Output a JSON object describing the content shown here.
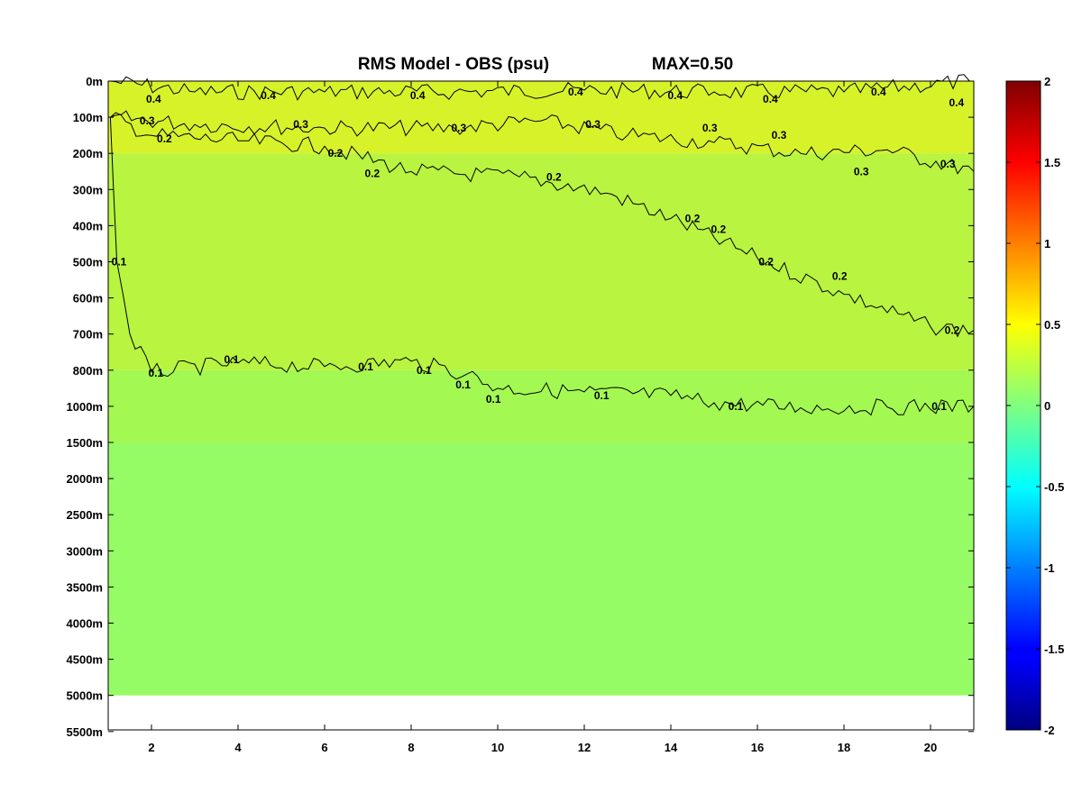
{
  "chart_data": {
    "type": "heatmap",
    "title": "RMS Model - OBS (psu)",
    "annotation": "MAX=0.50",
    "xlim": [
      1,
      21
    ],
    "x_ticks": [
      2,
      4,
      6,
      8,
      10,
      12,
      14,
      16,
      18,
      20
    ],
    "y_ticks": [
      "0m",
      "100m",
      "200m",
      "300m",
      "400m",
      "500m",
      "600m",
      "700m",
      "800m",
      "1000m",
      "1500m",
      "2000m",
      "2500m",
      "3000m",
      "3500m",
      "4000m",
      "4500m",
      "5000m",
      "5500m"
    ],
    "data_extent_depth": "5000m",
    "colorbar": {
      "min": -2,
      "max": 2,
      "ticks": [
        "2",
        "1.5",
        "1",
        "0.5",
        "0",
        "-0.5",
        "-1",
        "-1.5",
        "-2"
      ],
      "colormap": "jet"
    },
    "fill_bands": [
      {
        "depth_from": "0m",
        "depth_to": "200m",
        "value": 0.38,
        "color": "#d8f22a"
      },
      {
        "depth_from": "200m",
        "depth_to": "800m",
        "value": 0.2,
        "color": "#b8f440"
      },
      {
        "depth_from": "800m",
        "depth_to": "1500m",
        "value": 0.12,
        "color": "#a4f852"
      },
      {
        "depth_from": "1500m",
        "depth_to": "5000m",
        "value": 0.08,
        "color": "#96fc66"
      }
    ],
    "contours": [
      {
        "level": 0.4,
        "label": "0.4",
        "points": [
          [
            1.05,
            "0m"
          ],
          [
            3,
            "30m"
          ],
          [
            6,
            "30m"
          ],
          [
            9,
            "30m"
          ],
          [
            12,
            "25m"
          ],
          [
            15,
            "30m"
          ],
          [
            18,
            "30m"
          ],
          [
            20.9,
            "0m"
          ]
        ],
        "label_positions": [
          [
            2.05,
            "50m"
          ],
          [
            4.7,
            "40m"
          ],
          [
            8.15,
            "40m"
          ],
          [
            11.8,
            "30m"
          ],
          [
            14.1,
            "40m"
          ],
          [
            16.3,
            "50m"
          ],
          [
            18.8,
            "30m"
          ],
          [
            20.6,
            "60m"
          ]
        ]
      },
      {
        "level": 0.3,
        "label": "0.3",
        "points": [
          [
            1.05,
            "100m"
          ],
          [
            3,
            "120m"
          ],
          [
            6,
            "130m"
          ],
          [
            9,
            "130m"
          ],
          [
            11,
            "110m"
          ],
          [
            13,
            "150m"
          ],
          [
            15,
            "170m"
          ],
          [
            17,
            "200m"
          ],
          [
            19,
            "190m"
          ],
          [
            21,
            "250m"
          ]
        ],
        "label_positions": [
          [
            1.9,
            "110m"
          ],
          [
            5.45,
            "120m"
          ],
          [
            9.1,
            "130m"
          ],
          [
            12.2,
            "120m"
          ],
          [
            14.9,
            "130m"
          ],
          [
            16.5,
            "150m"
          ],
          [
            18.4,
            "250m"
          ],
          [
            20.4,
            "230m"
          ]
        ]
      },
      {
        "level": 0.2,
        "label": "0.2",
        "points": [
          [
            1.05,
            "100m"
          ],
          [
            2,
            "150m"
          ],
          [
            4,
            "165m"
          ],
          [
            6,
            "180m"
          ],
          [
            8,
            "250m"
          ],
          [
            10.5,
            "265m"
          ],
          [
            12.5,
            "310m"
          ],
          [
            14,
            "380m"
          ],
          [
            16,
            "490m"
          ],
          [
            18,
            "590m"
          ],
          [
            20,
            "680m"
          ],
          [
            21,
            "690m"
          ]
        ],
        "label_positions": [
          [
            2.3,
            "160m"
          ],
          [
            6.25,
            "200m"
          ],
          [
            7.1,
            "255m"
          ],
          [
            11.3,
            "265m"
          ],
          [
            14.5,
            "380m"
          ],
          [
            15.1,
            "410m"
          ],
          [
            16.2,
            "500m"
          ],
          [
            17.9,
            "540m"
          ],
          [
            20.5,
            "690m"
          ]
        ]
      },
      {
        "level": 0.1,
        "label": "0.1",
        "points": [
          [
            1.05,
            "100m"
          ],
          [
            1.2,
            "500m"
          ],
          [
            1.5,
            "700m"
          ],
          [
            2,
            "810m"
          ],
          [
            4,
            "780m"
          ],
          [
            6,
            "790m"
          ],
          [
            8,
            "775m"
          ],
          [
            9.3,
            "820m"
          ],
          [
            10,
            "900m"
          ],
          [
            12,
            "920m"
          ],
          [
            14,
            "940m"
          ],
          [
            15,
            "980m"
          ],
          [
            17,
            "1020m"
          ],
          [
            19,
            "1010m"
          ],
          [
            21,
            "1000m"
          ]
        ],
        "label_positions": [
          [
            1.25,
            "500m"
          ],
          [
            2.1,
            "815m"
          ],
          [
            3.85,
            "770m"
          ],
          [
            6.95,
            "790m"
          ],
          [
            8.3,
            "800m"
          ],
          [
            9.2,
            "880m"
          ],
          [
            9.9,
            "960m"
          ],
          [
            12.4,
            "940m"
          ],
          [
            15.5,
            "1000m"
          ],
          [
            20.2,
            "1000m"
          ]
        ]
      }
    ]
  }
}
